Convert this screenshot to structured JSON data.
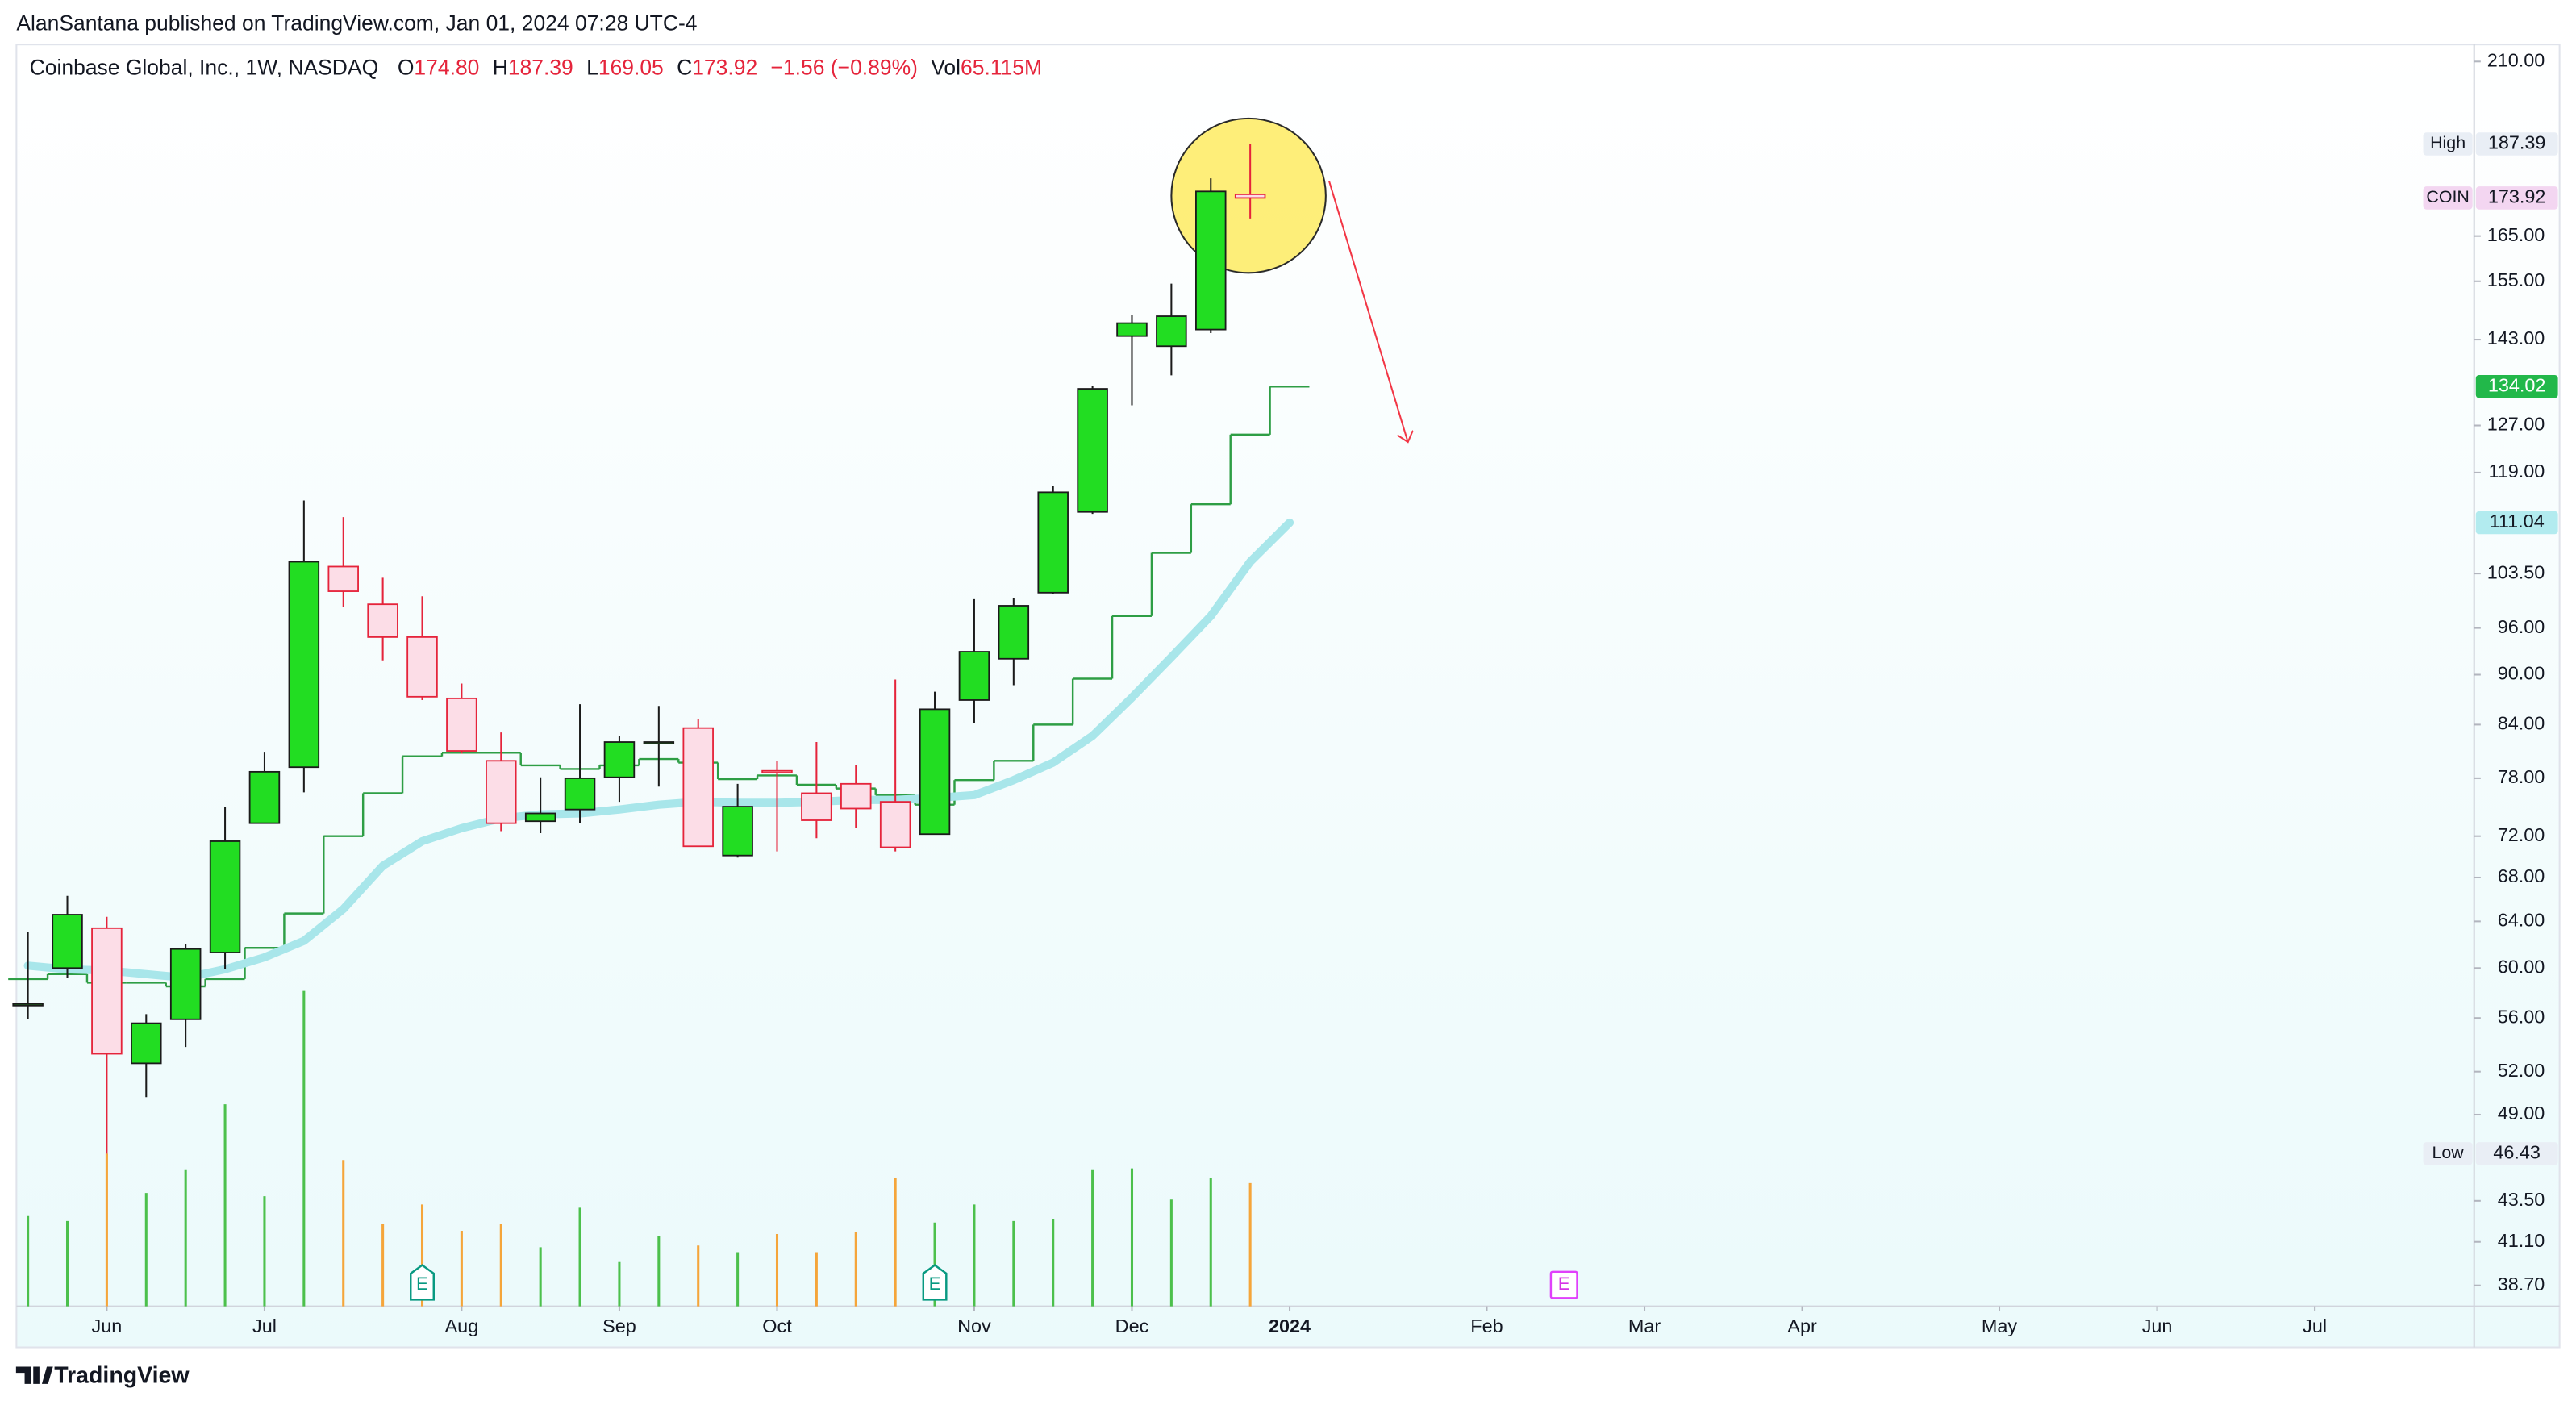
{
  "header": {
    "text": "AlanSantana published on TradingView.com, Jan 01, 2024 07:28 UTC-4"
  },
  "footer": {
    "brand": "TradingView"
  },
  "chart_data": {
    "type": "candlestick",
    "title": "Coinbase Global, Inc., 1W, NASDAQ",
    "legend_items": [
      {
        "key": "O",
        "value": "174.80"
      },
      {
        "key": "H",
        "value": "187.39"
      },
      {
        "key": "L",
        "value": "169.05"
      },
      {
        "key": "C",
        "value": "173.92"
      },
      {
        "value": "−1.56 (−0.89%)"
      },
      {
        "key": "Vol",
        "value": "65.115M"
      }
    ],
    "categories": [
      null,
      null,
      "Jun",
      null,
      null,
      null,
      "Jul",
      null,
      null,
      null,
      null,
      "Aug",
      null,
      null,
      null,
      "Sep",
      null,
      null,
      null,
      "Oct",
      null,
      null,
      null,
      null,
      "Nov",
      null,
      null,
      null,
      "Dec",
      null,
      null,
      null,
      "2024",
      null,
      null,
      null,
      null,
      "Feb",
      null,
      null,
      null,
      "Mar",
      null,
      null,
      null,
      "Apr",
      null,
      null,
      null,
      null,
      "May",
      null,
      null,
      null,
      "Jun",
      null,
      null,
      null,
      "Jul",
      null,
      null,
      null,
      null
    ],
    "open": [
      57.0,
      60.0,
      63.4,
      52.6,
      55.9,
      61.3,
      73.3,
      79.2,
      104.5,
      99.2,
      94.8,
      87.1,
      79.9,
      73.5,
      74.7,
      78.1,
      81.9,
      83.6,
      70.1,
      78.8,
      76.4,
      77.4,
      75.5,
      72.2,
      86.9,
      92.0,
      100.8,
      112.7,
      143.7,
      141.7,
      145.0,
      174.8,
      null,
      null,
      null,
      null,
      null,
      null,
      null,
      null,
      null,
      null,
      null,
      null,
      null,
      null,
      null,
      null,
      null,
      null,
      null,
      null,
      null,
      null,
      null,
      null,
      null,
      null,
      null,
      null,
      null,
      null,
      null
    ],
    "high": [
      63.1,
      66.3,
      64.4,
      56.3,
      62.0,
      75.0,
      80.9,
      114.5,
      111.9,
      102.9,
      100.3,
      88.9,
      83.1,
      78.1,
      86.4,
      82.7,
      86.2,
      84.6,
      77.4,
      79.9,
      82.0,
      79.4,
      89.4,
      87.9,
      99.9,
      100.1,
      116.8,
      134.2,
      148.0,
      154.5,
      178.7,
      187.39,
      null,
      null,
      null,
      null,
      null,
      null,
      null,
      null,
      null,
      null,
      null,
      null,
      null,
      null,
      null,
      null,
      null,
      null,
      null,
      null,
      null,
      null,
      null,
      null,
      null,
      null,
      null,
      null,
      null,
      null,
      null
    ],
    "low": [
      55.9,
      59.2,
      46.43,
      50.2,
      53.8,
      59.9,
      73.3,
      76.5,
      98.8,
      91.8,
      86.9,
      80.7,
      72.5,
      72.3,
      73.3,
      75.5,
      77.1,
      71.0,
      69.9,
      70.5,
      71.8,
      72.8,
      70.5,
      72.2,
      84.2,
      88.7,
      100.6,
      112.4,
      130.6,
      136.1,
      144.3,
      169.05,
      null,
      null,
      null,
      null,
      null,
      null,
      null,
      null,
      null,
      null,
      null,
      null,
      null,
      null,
      null,
      null,
      null,
      null,
      null,
      null,
      null,
      null,
      null,
      null,
      null,
      null,
      null,
      null,
      null,
      null,
      null
    ],
    "close": [
      57.1,
      64.6,
      53.3,
      55.6,
      61.6,
      71.5,
      78.7,
      105.2,
      101.0,
      94.8,
      87.3,
      81.0,
      73.3,
      74.3,
      78.0,
      82.0,
      82.0,
      71.0,
      75.0,
      78.6,
      73.6,
      74.8,
      70.9,
      85.8,
      92.9,
      99.0,
      115.8,
      133.6,
      146.3,
      147.7,
      175.5,
      173.92,
      null,
      null,
      null,
      null,
      null,
      null,
      null,
      null,
      null,
      null,
      null,
      null,
      null,
      null,
      null,
      null,
      null,
      null,
      null,
      null,
      null,
      null,
      null,
      null,
      null,
      null,
      null,
      null,
      null,
      null,
      null
    ],
    "up_color": "#22dd22",
    "up_stroke": "#1b1b1b",
    "down_color": "#e5243b",
    "down_fill": "#fcdde7",
    "volume": {
      "axis": "y2",
      "up_color": "#4cc04c",
      "down_color": "#f5a53a",
      "values": [
        47.7,
        45.1,
        80.7,
        59.9,
        72.0,
        106.8,
        58.2,
        166.7,
        77.3,
        43.4,
        53.8,
        39.9,
        43.4,
        31.2,
        52.1,
        23.4,
        37.3,
        32.1,
        28.6,
        38.2,
        28.6,
        39.1,
        67.7,
        44.3,
        53.8,
        45.1,
        46.0,
        72.0,
        72.9,
        56.4,
        67.7,
        65.115,
        null,
        null,
        null,
        null,
        null,
        null,
        null,
        null,
        null,
        null,
        null,
        null,
        null,
        null,
        null,
        null,
        null,
        null,
        null,
        null,
        null,
        null,
        null,
        null,
        null,
        null,
        null,
        null,
        null,
        null,
        null
      ]
    },
    "lines": [
      {
        "style": "step",
        "color": "#2e9e45",
        "width": 1.2,
        "values": [
          59.1,
          59.5,
          58.8,
          58.8,
          58.5,
          59.1,
          61.7,
          64.7,
          72.0,
          76.4,
          80.4,
          80.8,
          80.8,
          79.4,
          79.0,
          79.4,
          80.1,
          79.7,
          77.9,
          78.3,
          77.3,
          76.9,
          76.2,
          75.2,
          77.8,
          79.9,
          84.0,
          89.5,
          97.6,
          106.5,
          113.9,
          125.4,
          134.02,
          null,
          null,
          null,
          null,
          null,
          null,
          null,
          null,
          null,
          null,
          null,
          null,
          null,
          null,
          null,
          null,
          null,
          null,
          null,
          null,
          null,
          null,
          null,
          null,
          null,
          null,
          null,
          null,
          null,
          null
        ]
      },
      {
        "style": "smooth",
        "color": "#a8e6ea",
        "width": 5,
        "values": [
          60.2,
          59.9,
          59.8,
          59.5,
          59.2,
          59.9,
          60.9,
          62.3,
          65.1,
          69.1,
          71.5,
          72.8,
          73.8,
          74.2,
          74.3,
          74.7,
          75.2,
          75.5,
          75.4,
          75.4,
          75.5,
          75.7,
          75.7,
          75.9,
          76.2,
          77.8,
          79.7,
          82.7,
          87.2,
          92.2,
          97.6,
          105.2,
          111.04,
          null,
          null,
          null,
          null,
          null,
          null,
          null,
          null,
          null,
          null,
          null,
          null,
          null,
          null,
          null,
          null,
          null,
          null,
          null,
          null,
          null,
          null,
          null,
          null,
          null,
          null,
          null,
          null,
          null,
          null
        ]
      }
    ],
    "log_scale": true,
    "grid": false,
    "ylim": [
      37.6,
      215
    ],
    "yticks": [
      {
        "value": 210,
        "label": "210.00"
      },
      {
        "value": 165,
        "label": "165.00"
      },
      {
        "value": 155,
        "label": "155.00"
      },
      {
        "value": 143,
        "label": "143.00"
      },
      {
        "value": 127,
        "label": "127.00"
      },
      {
        "value": 119,
        "label": "119.00"
      },
      {
        "value": 103.5,
        "label": "103.50"
      },
      {
        "value": 96,
        "label": "96.00"
      },
      {
        "value": 90,
        "label": "90.00"
      },
      {
        "value": 84,
        "label": "84.00"
      },
      {
        "value": 78,
        "label": "78.00"
      },
      {
        "value": 72,
        "label": "72.00"
      },
      {
        "value": 68,
        "label": "68.00"
      },
      {
        "value": 64,
        "label": "64.00"
      },
      {
        "value": 60,
        "label": "60.00"
      },
      {
        "value": 56,
        "label": "56.00"
      },
      {
        "value": 52,
        "label": "52.00"
      },
      {
        "value": 49,
        "label": "49.00"
      },
      {
        "value": 43.5,
        "label": "43.50"
      },
      {
        "value": 41.1,
        "label": "41.10"
      },
      {
        "value": 38.7,
        "label": "38.70"
      }
    ],
    "y2lim": [
      0,
      667
    ],
    "price_labels": [
      {
        "name": "High",
        "value": 187.39,
        "color": "#e9eef5",
        "text_color": "#131722"
      },
      {
        "name": "COIN",
        "value": 173.92,
        "color": "#f3d6f1",
        "text_color": "#131722"
      },
      {
        "value": 134.02,
        "color": "#22b84a",
        "text_color": "#ffffff"
      },
      {
        "value": 111.04,
        "color": "#b2ebef",
        "text_color": "#131722"
      },
      {
        "name": "Low",
        "value": 46.43,
        "color": "#e9eef5",
        "text_color": "#131722"
      }
    ],
    "earnings": [
      "E",
      "E",
      "E"
    ]
  }
}
